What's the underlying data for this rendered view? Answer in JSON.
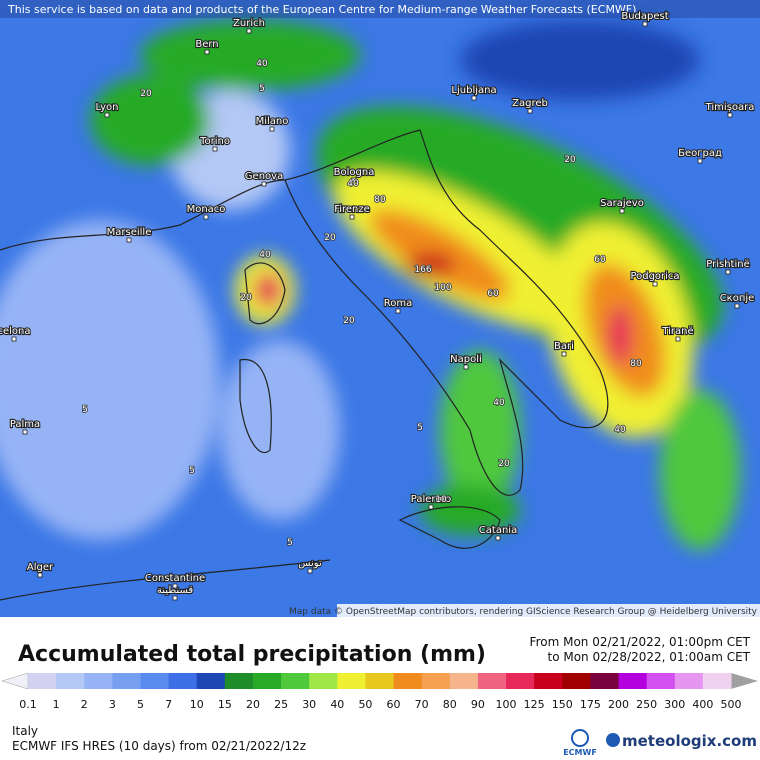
{
  "header": {
    "notice": "This service is based on data and products of the European Centre for Medium-range Weather Forecasts (ECMWF)"
  },
  "map": {
    "cities": [
      "Zurich",
      "Bern",
      "Budapest",
      "Lyon",
      "Milano",
      "Ljubljana",
      "Zagreb",
      "Timișoara",
      "Torino",
      "Београд",
      "Genova",
      "Monaco",
      "Bologna",
      "Marseille",
      "Firenze",
      "Sarajevo",
      "Prishtinë",
      "Podgorica",
      "Скопје",
      "Roma",
      "Tiranë",
      "celona",
      "Napoli",
      "Bari",
      "Palma",
      "Palermo",
      "Catania",
      "Alger",
      "Constantine",
      "قسنطينة",
      "تونس"
    ],
    "contour_labels": [
      166,
      100,
      80,
      60,
      40,
      40,
      20,
      20,
      80,
      60,
      40,
      20,
      40,
      20,
      10,
      5,
      5,
      5,
      20,
      40,
      20,
      5,
      5
    ],
    "attribution": "Map data © OpenStreetMap contributors, rendering GIScience Research Group @ Heidelberg University"
  },
  "legend": {
    "title": "Accumulated total precipitation (mm)",
    "from": "From Mon 02/21/2022, 01:00pm CET",
    "to": "to Mon 02/28/2022, 01:00am CET",
    "ticks": [
      0.1,
      1,
      2,
      3,
      5,
      7,
      10,
      15,
      20,
      25,
      30,
      40,
      50,
      60,
      70,
      80,
      90,
      100,
      125,
      150,
      175,
      200,
      250,
      300,
      400,
      500
    ],
    "colors": [
      "#d2d2f0",
      "#b4c8f5",
      "#96b4f5",
      "#78a0f0",
      "#5a8cf0",
      "#3c6ee6",
      "#1e46b4",
      "#1e8c28",
      "#28aa28",
      "#50c83c",
      "#a0e646",
      "#f0f032",
      "#e6c81e",
      "#f08c1e",
      "#f5a050",
      "#f5b48c",
      "#f06482",
      "#e6285a",
      "#c8001e",
      "#a00000",
      "#78003c",
      "#b400dc",
      "#d250f0",
      "#e696f0",
      "#f0d2f0"
    ],
    "under_color": "#f0f0f8",
    "over_color": "#a0a0a0"
  },
  "footer": {
    "region": "Italy",
    "model": "ECMWF IFS HRES (10 days) from 02/21/2022/12z",
    "ecmwf": "ECMWF",
    "brand": "meteologix.com"
  }
}
